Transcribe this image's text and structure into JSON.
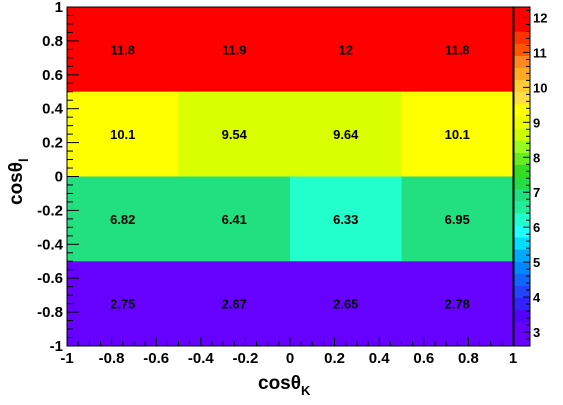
{
  "chart_data": {
    "type": "heatmap",
    "title": "",
    "xlabel": {
      "base": "cos",
      "theta": "θ",
      "sub": "K"
    },
    "ylabel": {
      "base": "cos",
      "theta": "θ",
      "sub": "l"
    },
    "x_edges": [
      -1,
      -0.5,
      0,
      0.5,
      1
    ],
    "y_edges": [
      -1,
      -0.5,
      0,
      0.5,
      1
    ],
    "xlim": [
      -1,
      1
    ],
    "ylim": [
      -1,
      1
    ],
    "x_ticks": [
      -1,
      -0.8,
      -0.6,
      -0.4,
      -0.2,
      0,
      0.2,
      0.4,
      0.6,
      0.8,
      1
    ],
    "x_tick_labels": [
      "-1",
      "-0.8",
      "-0.6",
      "-0.4",
      "-0.2",
      "0",
      "0.2",
      "0.4",
      "0.6",
      "0.8",
      "1"
    ],
    "y_ticks": [
      -1,
      -0.8,
      -0.6,
      -0.4,
      -0.2,
      0,
      0.2,
      0.4,
      0.6,
      0.8,
      1
    ],
    "y_tick_labels": [
      "-1",
      "-0.8",
      "-0.6",
      "-0.4",
      "-0.2",
      "0",
      "0.2",
      "0.4",
      "0.6",
      "0.8",
      "1"
    ],
    "rows_top_to_bottom": [
      {
        "values": [
          11.8,
          11.9,
          12,
          11.8
        ],
        "labels": [
          "11.8",
          "11.9",
          "12",
          "11.8"
        ],
        "colors": [
          "#ff0000",
          "#ff0000",
          "#ff0000",
          "#ff0000"
        ]
      },
      {
        "values": [
          10.1,
          9.54,
          9.64,
          10.1
        ],
        "labels": [
          "10.1",
          "9.54",
          "9.64",
          "10.1"
        ],
        "colors": [
          "#ffff00",
          "#d9ff00",
          "#d9ff00",
          "#ffff00"
        ]
      },
      {
        "values": [
          6.82,
          6.41,
          6.33,
          6.95
        ],
        "labels": [
          "6.82",
          "6.41",
          "6.33",
          "6.95"
        ],
        "colors": [
          "#22e080",
          "#22e080",
          "#22ffcc",
          "#22e080"
        ]
      },
      {
        "values": [
          2.75,
          2.67,
          2.65,
          2.78
        ],
        "labels": [
          "2.75",
          "2.67",
          "2.65",
          "2.78"
        ],
        "colors": [
          "#6600ff",
          "#6600ff",
          "#6600ff",
          "#6600ff"
        ]
      }
    ],
    "colorbar": {
      "range": [
        2.6,
        12.3
      ],
      "ticks": [
        3,
        4,
        5,
        6,
        7,
        8,
        9,
        10,
        11,
        12
      ],
      "tick_labels": [
        "3",
        "4",
        "5",
        "6",
        "7",
        "8",
        "9",
        "10",
        "11",
        "12"
      ],
      "colors_bottom_to_top": [
        "#6600ff",
        "#6600ff",
        "#5500ff",
        "#3322ff",
        "#2244ff",
        "#1166ff",
        "#0088ff",
        "#00aaff",
        "#00ddff",
        "#22ffff",
        "#22ffcc",
        "#22ee99",
        "#22e080",
        "#22dd44",
        "#33dd22",
        "#66ee22",
        "#99ff22",
        "#ccff00",
        "#eeff00",
        "#ffff00",
        "#ffdd44",
        "#ffcc33",
        "#ffaa22",
        "#ff8822",
        "#ff5500",
        "#ff3300",
        "#ff0000",
        "#ff0000"
      ]
    }
  }
}
